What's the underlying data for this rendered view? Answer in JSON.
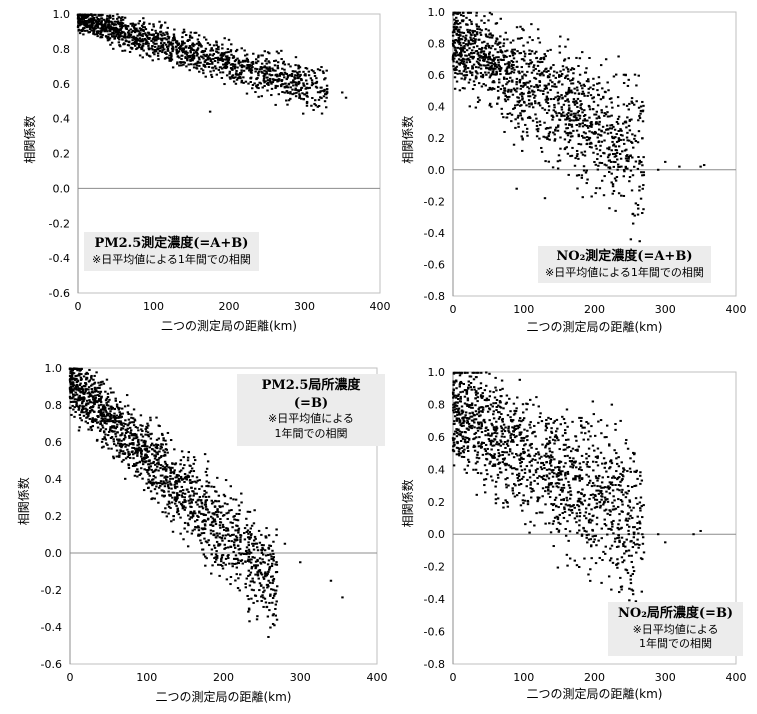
{
  "chart_data": [
    {
      "id": "pm25_total",
      "type": "scatter",
      "title": "PM2.5測定濃度(=A+B)",
      "note_lines": [
        "※日平均値による1年間での相関"
      ],
      "xlabel": "二つの測定局の距離(km)",
      "ylabel": "相関係数",
      "xlim": [
        0,
        400
      ],
      "ylim": [
        -0.6,
        1.0
      ],
      "x_ticks": [
        "0",
        "100",
        "200",
        "300",
        "400"
      ],
      "y_ticks": [
        "-0.6",
        "-0.4",
        "-0.2",
        "0.0",
        "0.2",
        "0.4",
        "0.6",
        "0.8",
        "1.0"
      ],
      "grid": false,
      "trend": {
        "intercept": 0.97,
        "slope": -0.00125,
        "spread": 0.05
      },
      "xmax_points": 330,
      "point_count": 1400,
      "points": [
        [
          5,
          0.97
        ],
        [
          20,
          0.96
        ],
        [
          50,
          0.92
        ],
        [
          100,
          0.86
        ],
        [
          150,
          0.8
        ],
        [
          200,
          0.72
        ],
        [
          250,
          0.66
        ],
        [
          270,
          0.66
        ],
        [
          310,
          0.62
        ],
        [
          330,
          0.57
        ],
        [
          350,
          0.55
        ],
        [
          355,
          0.52
        ],
        [
          175,
          0.44
        ]
      ]
    },
    {
      "id": "no2_total",
      "type": "scatter",
      "title": "NO₂測定濃度(=A+B)",
      "note_lines": [
        "※日平均値による1年間での相関"
      ],
      "xlabel": "二つの測定局の距離(km)",
      "ylabel": "相関係数",
      "xlim": [
        0,
        400
      ],
      "ylim": [
        -0.8,
        1.0
      ],
      "x_ticks": [
        "0",
        "100",
        "200",
        "300",
        "400"
      ],
      "y_ticks": [
        "-0.8",
        "-0.6",
        "-0.4",
        "-0.2",
        "0.0",
        "0.2",
        "0.4",
        "0.6",
        "0.8",
        "1.0"
      ],
      "grid": false,
      "trend": {
        "intercept": 0.82,
        "slope": -0.0027,
        "spread": 0.16
      },
      "xmax_points": 270,
      "point_count": 1400,
      "points": [
        [
          5,
          0.93
        ],
        [
          10,
          0.85
        ],
        [
          50,
          0.7
        ],
        [
          100,
          0.55
        ],
        [
          150,
          0.45
        ],
        [
          200,
          0.35
        ],
        [
          250,
          0.25
        ],
        [
          290,
          0.0
        ],
        [
          300,
          0.05
        ],
        [
          320,
          0.02
        ],
        [
          350,
          0.02
        ],
        [
          355,
          0.03
        ],
        [
          130,
          -0.18
        ],
        [
          90,
          -0.12
        ]
      ]
    },
    {
      "id": "pm25_local",
      "type": "scatter",
      "title": "PM2.5局所濃度(=B)",
      "note_lines": [
        "※日平均値による",
        "1年間での相関"
      ],
      "xlabel": "二つの測定局の距離(km)",
      "ylabel": "相関係数",
      "xlim": [
        0,
        400
      ],
      "ylim": [
        -0.6,
        1.0
      ],
      "x_ticks": [
        "0",
        "100",
        "200",
        "300",
        "400"
      ],
      "y_ticks": [
        "-0.6",
        "-0.4",
        "-0.2",
        "0.0",
        "0.2",
        "0.4",
        "0.6",
        "0.8",
        "1.0"
      ],
      "grid": false,
      "trend": {
        "intercept": 0.93,
        "slope": -0.0041,
        "spread": 0.1
      },
      "xmax_points": 270,
      "point_count": 1600,
      "points": [
        [
          3,
          0.94
        ],
        [
          10,
          0.9
        ],
        [
          50,
          0.72
        ],
        [
          100,
          0.52
        ],
        [
          150,
          0.32
        ],
        [
          200,
          0.14
        ],
        [
          250,
          0.0
        ],
        [
          300,
          -0.05
        ],
        [
          340,
          -0.15
        ],
        [
          355,
          -0.24
        ],
        [
          270,
          -0.18
        ],
        [
          280,
          0.05
        ]
      ]
    },
    {
      "id": "no2_local",
      "type": "scatter",
      "title": "NO₂局所濃度(=B)",
      "note_lines": [
        "※日平均値による",
        "1年間での相関"
      ],
      "xlabel": "二つの測定局の距離(km)",
      "ylabel": "相関係数",
      "xlim": [
        0,
        400
      ],
      "ylim": [
        -0.8,
        1.0
      ],
      "x_ticks": [
        "0",
        "100",
        "200",
        "300",
        "400"
      ],
      "y_ticks": [
        "-0.8",
        "-0.6",
        "-0.4",
        "-0.2",
        "0.0",
        "0.2",
        "0.4",
        "0.6",
        "0.8",
        "1.0"
      ],
      "grid": false,
      "trend": {
        "intercept": 0.76,
        "slope": -0.0027,
        "spread": 0.19
      },
      "xmax_points": 270,
      "point_count": 1400,
      "points": [
        [
          5,
          0.9
        ],
        [
          10,
          0.82
        ],
        [
          50,
          0.62
        ],
        [
          100,
          0.5
        ],
        [
          150,
          0.4
        ],
        [
          200,
          0.3
        ],
        [
          250,
          0.2
        ],
        [
          290,
          0.0
        ],
        [
          300,
          -0.05
        ],
        [
          340,
          0.0
        ],
        [
          350,
          0.02
        ],
        [
          210,
          -0.3
        ]
      ]
    }
  ]
}
